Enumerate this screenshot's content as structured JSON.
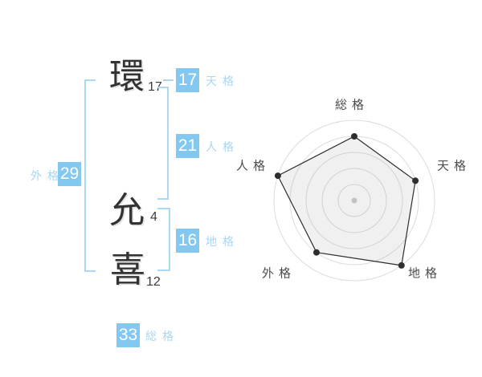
{
  "name": {
    "characters": [
      {
        "char": "環",
        "strokes": "17"
      },
      {
        "char": "允",
        "strokes": "4"
      },
      {
        "char": "喜",
        "strokes": "12"
      }
    ]
  },
  "kaku": {
    "tenkaku": {
      "label": "天格",
      "value": "17"
    },
    "jinkaku": {
      "label": "人格",
      "value": "21"
    },
    "chikaku": {
      "label": "地格",
      "value": "16"
    },
    "gaikaku": {
      "label": "外格",
      "value": "29"
    },
    "soukaku": {
      "label": "総格",
      "value": "33"
    }
  },
  "chart_data": {
    "type": "radar",
    "axes": [
      "総格",
      "天格",
      "地格",
      "外格",
      "人格"
    ],
    "values": [
      80,
      80,
      100,
      80,
      100
    ],
    "max": 100,
    "rings": 5,
    "ring_step": 20,
    "grid": "circular",
    "legend": false
  },
  "colors": {
    "value_box_blue": "#82c8f0",
    "label_blue": "#a9d6f3",
    "bracket_blue": "#a8daf6",
    "kanji_dark": "#333333",
    "grid_gray": "#dcdcdc",
    "series_dark": "#2e2e2e",
    "center_dot_gray": "#c2c2c2",
    "radar_label_gray": "#4e4e4e",
    "radar_fill": "rgba(130,130,130,0.12)"
  }
}
